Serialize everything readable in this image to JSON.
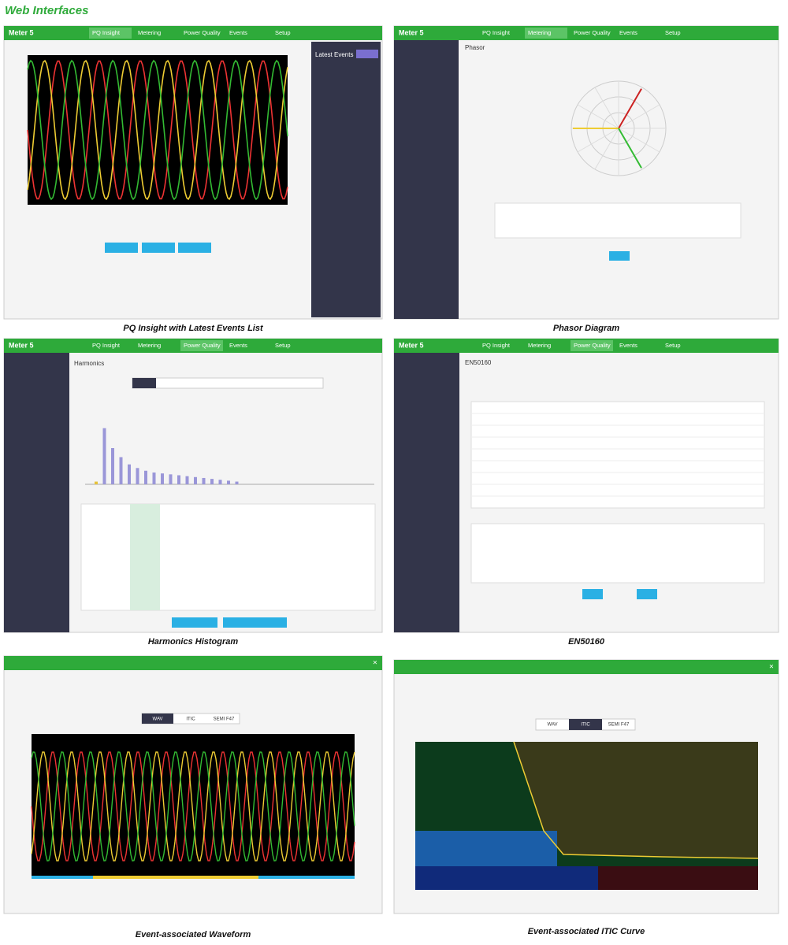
{
  "title": "Web Interfaces",
  "brand": "Meter 5",
  "nav_items": [
    "PQ Insight",
    "Metering",
    "Power Quality",
    "Events",
    "Setup"
  ],
  "captions": [
    "PQ Insight with Latest Events List",
    "Phasor Diagram",
    "Harmonics Histogram",
    "EN50160",
    "Event-associated Waveform",
    "Event-associated ITIC Curve"
  ],
  "latest_events": "Latest Events",
  "phasor_title": "Phasor",
  "harmonics_title": "Harmonics",
  "en50160_title": "EN50160",
  "event_tabs": [
    "WAV",
    "ITIC",
    "SEMI F47"
  ],
  "harmonics_histogram": {
    "values": [
      3,
      62,
      40,
      30,
      22,
      18,
      15,
      13,
      12,
      11,
      10,
      9,
      8,
      7,
      6,
      5,
      4,
      3
    ],
    "ylim": [
      0,
      100
    ]
  }
}
